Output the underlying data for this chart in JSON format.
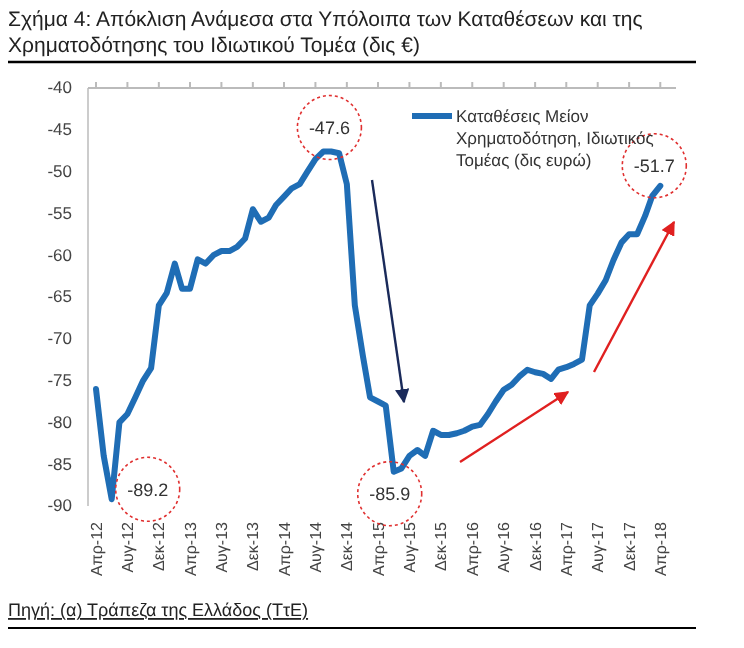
{
  "chart_data": {
    "type": "line",
    "title": "Σχήμα 4: Απόκλιση Ανάμεσα στα Υπόλοιπα των Καταθέσεων και της Χρηματοδότησης του Ιδιωτικού Τομέα (δις €)",
    "x": [
      "2012-04",
      "2012-05",
      "2012-06",
      "2012-07",
      "2012-08",
      "2012-09",
      "2012-10",
      "2012-11",
      "2012-12",
      "2013-01",
      "2013-02",
      "2013-03",
      "2013-04",
      "2013-05",
      "2013-06",
      "2013-07",
      "2013-08",
      "2013-09",
      "2013-10",
      "2013-11",
      "2013-12",
      "2014-01",
      "2014-02",
      "2014-03",
      "2014-04",
      "2014-05",
      "2014-06",
      "2014-07",
      "2014-08",
      "2014-09",
      "2014-10",
      "2014-11",
      "2014-12",
      "2015-01",
      "2015-02",
      "2015-03",
      "2015-04",
      "2015-05",
      "2015-06",
      "2015-07",
      "2015-08",
      "2015-09",
      "2015-10",
      "2015-11",
      "2015-12",
      "2016-01",
      "2016-02",
      "2016-03",
      "2016-04",
      "2016-05",
      "2016-06",
      "2016-07",
      "2016-08",
      "2016-09",
      "2016-10",
      "2016-11",
      "2016-12",
      "2017-01",
      "2017-02",
      "2017-03",
      "2017-04",
      "2017-05",
      "2017-06",
      "2017-07",
      "2017-08",
      "2017-09",
      "2017-10",
      "2017-11",
      "2017-12",
      "2018-01",
      "2018-02",
      "2018-03",
      "2018-04"
    ],
    "series": [
      {
        "name": "Καταθέσεις Μείον Χρηματοδότηση, Ιδιωτικός Τομέας (δις ευρώ)",
        "color": "#1f6db5",
        "values": [
          -76,
          -84,
          -89.2,
          -80,
          -79,
          -77,
          -75,
          -73.5,
          -66,
          -64.5,
          -61,
          -64,
          -64,
          -60.5,
          -61,
          -60,
          -59.5,
          -59.5,
          -59,
          -58,
          -54.5,
          -56,
          -55.5,
          -54,
          -53,
          -52,
          -51.5,
          -50,
          -48.5,
          -47.6,
          -47.6,
          -47.8,
          -51.5,
          -66,
          -72,
          -77,
          -77.5,
          -78,
          -85.9,
          -85.5,
          -84,
          -83.3,
          -84,
          -81,
          -81.5,
          -81.5,
          -81.3,
          -81,
          -80.5,
          -80.3,
          -79,
          -77.5,
          -76.1,
          -75.5,
          -74.5,
          -73.7,
          -74,
          -74.2,
          -74.8,
          -73.7,
          -73.4,
          -73,
          -72.5,
          -66,
          -64.6,
          -63,
          -60.6,
          -58.5,
          -57.5,
          -57.5,
          -55.3,
          -52.9,
          -51.7
        ]
      }
    ],
    "xlim": [
      "2012-03",
      "2018-06"
    ],
    "xticks": [
      {
        "value": "2012-04",
        "label": "Απρ-12"
      },
      {
        "value": "2012-08",
        "label": "Αυγ-12"
      },
      {
        "value": "2012-12",
        "label": "Δεκ-12"
      },
      {
        "value": "2013-04",
        "label": "Απρ-13"
      },
      {
        "value": "2013-08",
        "label": "Αυγ-13"
      },
      {
        "value": "2013-12",
        "label": "Δεκ-13"
      },
      {
        "value": "2014-04",
        "label": "Απρ-14"
      },
      {
        "value": "2014-08",
        "label": "Αυγ-14"
      },
      {
        "value": "2014-12",
        "label": "Δεκ-14"
      },
      {
        "value": "2015-04",
        "label": "Απρ-15"
      },
      {
        "value": "2015-08",
        "label": "Αυγ-15"
      },
      {
        "value": "2015-12",
        "label": "Δεκ-15"
      },
      {
        "value": "2016-04",
        "label": "Απρ-16"
      },
      {
        "value": "2016-08",
        "label": "Αυγ-16"
      },
      {
        "value": "2016-12",
        "label": "Δεκ-16"
      },
      {
        "value": "2017-04",
        "label": "Απρ-17"
      },
      {
        "value": "2017-08",
        "label": "Αυγ-17"
      },
      {
        "value": "2017-12",
        "label": "Δεκ-17"
      },
      {
        "value": "2018-04",
        "label": "Απρ-18"
      }
    ],
    "ylim": [
      -90,
      -40
    ],
    "yticks": [
      -90,
      -85,
      -80,
      -75,
      -70,
      -65,
      -60,
      -55,
      -50,
      -45,
      -40
    ],
    "legend": "top right",
    "annotations": [
      {
        "text": "-89.2",
        "x": "2012-06",
        "y": -89.2
      },
      {
        "text": "-47.6",
        "x": "2014-09",
        "y": -47.6
      },
      {
        "text": "-85.9",
        "x": "2015-06",
        "y": -85.9
      },
      {
        "text": "-51.7",
        "x": "2018-04",
        "y": -51.7
      },
      "Πηγή: (α) Τράπεζα της Ελλάδος (ΤτΕ)"
    ]
  }
}
